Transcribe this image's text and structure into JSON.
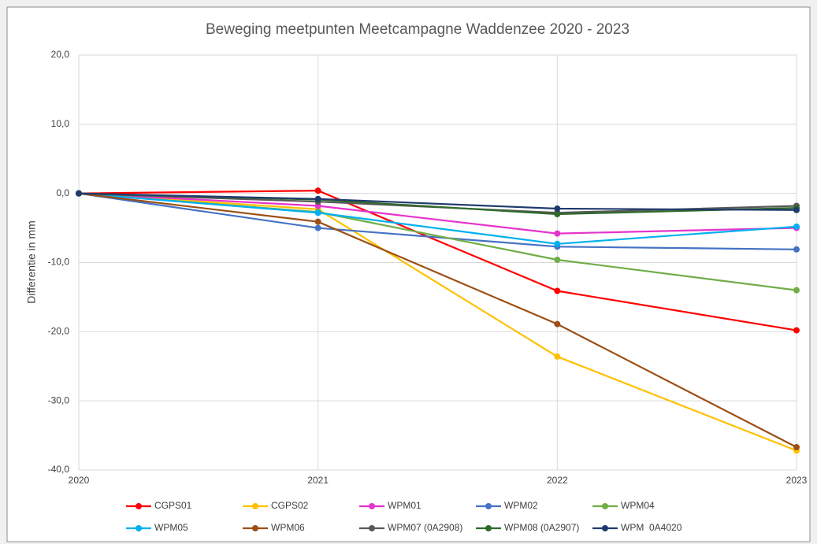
{
  "chart_data": {
    "type": "line",
    "title": "Beweging meetpunten Meetcampagne Waddenzee 2020 - 2023",
    "y_label": "Differentie in mm",
    "x": [
      2020,
      2021,
      2022,
      2023
    ],
    "xlim": [
      2020,
      2023
    ],
    "xticks": [
      2020,
      2021,
      2022,
      2023
    ],
    "ylim": [
      -40,
      20
    ],
    "yticks": [
      {
        "value": 20,
        "label": "20,0"
      },
      {
        "value": 10,
        "label": "10,0"
      },
      {
        "value": 0,
        "label": "0,0"
      },
      {
        "value": -10,
        "label": "-10,0"
      },
      {
        "value": -20,
        "label": "-20,0"
      },
      {
        "value": -30,
        "label": "-30,0"
      },
      {
        "value": -40,
        "label": "-40,0"
      }
    ],
    "grid": true,
    "legend": "bottom",
    "series": [
      {
        "name": "CGPS01",
        "color": "#ff0000",
        "values": [
          0,
          0.4,
          -14.1,
          -19.8
        ]
      },
      {
        "name": "CGPS02",
        "color": "#ffc000",
        "values": [
          0,
          -2.3,
          -23.6,
          -37.2
        ]
      },
      {
        "name": "WPM01",
        "color": "#e633cc",
        "values": [
          0,
          -1.8,
          -5.8,
          -5.0
        ]
      },
      {
        "name": "WPM02",
        "color": "#4472c4",
        "values": [
          0,
          -5.0,
          -7.7,
          -8.1
        ]
      },
      {
        "name": "WPM04",
        "color": "#70ad47",
        "values": [
          0,
          -2.7,
          -9.6,
          -14.0
        ]
      },
      {
        "name": "WPM05",
        "color": "#00b0f0",
        "values": [
          0,
          -2.8,
          -7.3,
          -4.8
        ]
      },
      {
        "name": "WPM06",
        "color": "#9c4f15",
        "values": [
          0,
          -4.1,
          -18.9,
          -36.7
        ]
      },
      {
        "name": "WPM07 (0A2908)",
        "color": "#595959",
        "values": [
          0,
          -1.2,
          -2.8,
          -1.8
        ]
      },
      {
        "name": "WPM08 (0A2907)",
        "color": "#2e6b2a",
        "values": [
          0,
          -0.9,
          -3.0,
          -2.1
        ]
      },
      {
        "name": "WPM  0A4020",
        "color": "#1f3a6e",
        "values": [
          0,
          -0.8,
          -2.2,
          -2.4
        ]
      }
    ]
  }
}
